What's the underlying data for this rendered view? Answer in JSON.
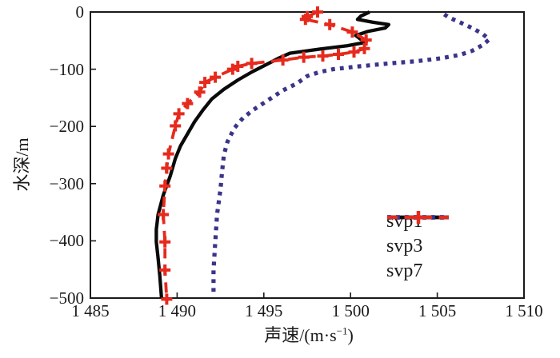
{
  "chart_data": {
    "type": "line",
    "title": "",
    "xlabel": "声速/(m·s−1)",
    "xlabel_parts": {
      "pre": "声速/(m·s",
      "sup": "−1",
      "post": ")"
    },
    "ylabel": "水深/m",
    "xlim": [
      1485,
      1510
    ],
    "ylim": [
      -500,
      0
    ],
    "x_ticks": [
      1485,
      1490,
      1495,
      1500,
      1505,
      1510
    ],
    "x_tick_labels": [
      "1 485",
      "1 490",
      "1 495",
      "1 500",
      "1 505",
      "1 510"
    ],
    "y_ticks": [
      0,
      -100,
      -200,
      -300,
      -400,
      -500
    ],
    "y_tick_labels": [
      "0",
      "−100",
      "−200",
      "−300",
      "−400",
      "−500"
    ],
    "grid": false,
    "legend_position": "lower-right",
    "frame_color": "#1a1a1a",
    "series": [
      {
        "name": "svp3",
        "color": "#3a3589",
        "line_style": "dotted",
        "line_width": 5.2,
        "marker": "none",
        "points": [
          [
            1505.4,
            -4
          ],
          [
            1505.7,
            -10
          ],
          [
            1506.3,
            -18
          ],
          [
            1507.0,
            -28
          ],
          [
            1507.6,
            -38
          ],
          [
            1508.0,
            -48
          ],
          [
            1507.6,
            -58
          ],
          [
            1507.0,
            -68
          ],
          [
            1506.3,
            -75
          ],
          [
            1505.2,
            -81
          ],
          [
            1503.8,
            -86
          ],
          [
            1502.2,
            -90
          ],
          [
            1500.5,
            -95
          ],
          [
            1499.0,
            -100
          ],
          [
            1498.2,
            -105
          ],
          [
            1497.5,
            -112
          ],
          [
            1496.9,
            -125
          ],
          [
            1496.1,
            -137
          ],
          [
            1495.1,
            -157
          ],
          [
            1494.4,
            -171
          ],
          [
            1493.8,
            -185
          ],
          [
            1493.3,
            -203
          ],
          [
            1492.9,
            -227
          ],
          [
            1492.7,
            -250
          ],
          [
            1492.6,
            -276
          ],
          [
            1492.5,
            -310
          ],
          [
            1492.3,
            -354
          ],
          [
            1492.2,
            -402
          ],
          [
            1492.1,
            -451
          ],
          [
            1492.1,
            -493
          ]
        ]
      },
      {
        "name": "svp1",
        "color": "#0a0a0a",
        "line_style": "solid",
        "line_width": 4.3,
        "marker": "none",
        "points": [
          [
            1501.1,
            0
          ],
          [
            1500.6,
            -7
          ],
          [
            1500.4,
            -13
          ],
          [
            1501.3,
            -18
          ],
          [
            1502.2,
            -22
          ],
          [
            1502.0,
            -28
          ],
          [
            1501.0,
            -34
          ],
          [
            1500.3,
            -41
          ],
          [
            1500.6,
            -48
          ],
          [
            1500.9,
            -53
          ],
          [
            1499.8,
            -59
          ],
          [
            1498.2,
            -65
          ],
          [
            1496.5,
            -72
          ],
          [
            1495.9,
            -80
          ],
          [
            1495.2,
            -91
          ],
          [
            1494.3,
            -105
          ],
          [
            1493.5,
            -119
          ],
          [
            1492.7,
            -135
          ],
          [
            1492.0,
            -152
          ],
          [
            1491.5,
            -171
          ],
          [
            1491.0,
            -192
          ],
          [
            1490.6,
            -213
          ],
          [
            1490.2,
            -234
          ],
          [
            1489.9,
            -256
          ],
          [
            1489.6,
            -287
          ],
          [
            1489.2,
            -320
          ],
          [
            1488.9,
            -354
          ],
          [
            1488.8,
            -380
          ],
          [
            1488.8,
            -402
          ],
          [
            1488.9,
            -430
          ],
          [
            1489.0,
            -460
          ],
          [
            1489.1,
            -500
          ]
        ]
      },
      {
        "name": "svp7",
        "color": "#e62a1d",
        "line_style": "dashed",
        "line_width": 3.8,
        "marker": "plus",
        "marker_size": 7,
        "points": [
          [
            1498.1,
            0
          ],
          [
            1497.5,
            -8
          ],
          [
            1497.4,
            -13
          ],
          [
            1498.8,
            -22
          ],
          [
            1500.1,
            -35
          ],
          [
            1500.9,
            -49
          ],
          [
            1500.8,
            -64
          ],
          [
            1500.2,
            -70
          ],
          [
            1499.3,
            -74
          ],
          [
            1498.4,
            -77
          ],
          [
            1497.3,
            -79
          ],
          [
            1496.1,
            -84
          ],
          [
            1494.3,
            -90
          ],
          [
            1493.5,
            -95
          ],
          [
            1493.2,
            -100
          ],
          [
            1492.2,
            -114
          ],
          [
            1491.6,
            -123
          ],
          [
            1491.3,
            -140
          ],
          [
            1490.6,
            -160
          ],
          [
            1490.1,
            -178
          ],
          [
            1489.9,
            -199
          ],
          [
            1489.5,
            -248
          ],
          [
            1489.4,
            -273
          ],
          [
            1489.3,
            -304
          ],
          [
            1489.2,
            -354
          ],
          [
            1489.3,
            -402
          ],
          [
            1489.3,
            -451
          ],
          [
            1489.4,
            -502
          ]
        ]
      }
    ],
    "legend_order": [
      "svp1",
      "svp3",
      "svp7"
    ]
  }
}
